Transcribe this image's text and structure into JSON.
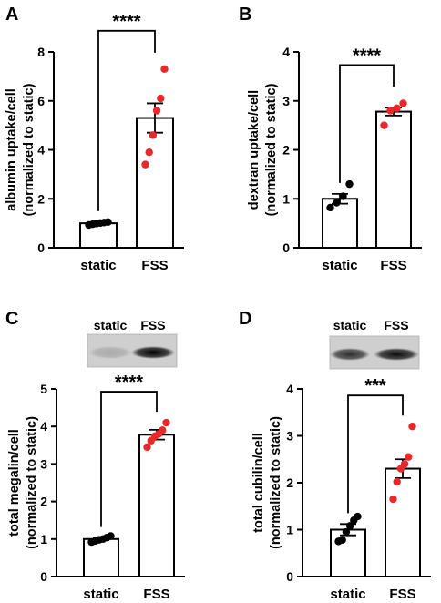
{
  "chart_data": [
    {
      "panel": "A",
      "type": "bar",
      "categories": [
        "static",
        "FSS"
      ],
      "ylabel_lines": [
        "albumin uptake/cell",
        "(normalized to static)"
      ],
      "ylim": [
        0,
        8
      ],
      "yticks": [
        0,
        2,
        4,
        6,
        8
      ],
      "means": [
        1.0,
        5.3
      ],
      "sem": [
        0.05,
        0.6
      ],
      "points": [
        [
          0.93,
          0.96,
          0.99,
          1.01,
          1.03,
          1.05
        ],
        [
          3.4,
          3.9,
          4.6,
          5.6,
          6.1,
          7.3
        ]
      ],
      "point_colors": [
        "#000000",
        "#e8282b"
      ],
      "significance": "****"
    },
    {
      "panel": "B",
      "type": "bar",
      "categories": [
        "static",
        "FSS"
      ],
      "ylabel_lines": [
        "dextran uptake/cell",
        "(normalized to static)"
      ],
      "ylim": [
        0,
        4
      ],
      "yticks": [
        0,
        1,
        2,
        3,
        4
      ],
      "means": [
        1.0,
        2.78
      ],
      "sem": [
        0.1,
        0.08
      ],
      "points": [
        [
          0.82,
          0.92,
          1.05,
          1.3
        ],
        [
          2.5,
          2.8,
          2.85,
          2.95
        ]
      ],
      "point_colors": [
        "#000000",
        "#e8282b"
      ],
      "significance": "****"
    },
    {
      "panel": "C",
      "type": "bar",
      "categories": [
        "static",
        "FSS"
      ],
      "ylabel_lines": [
        "total megalin/cell",
        "(normalized to static)"
      ],
      "ylim": [
        0,
        5
      ],
      "yticks": [
        0,
        1,
        2,
        3,
        4,
        5
      ],
      "means": [
        1.0,
        3.78
      ],
      "sem": [
        0.03,
        0.13
      ],
      "points": [
        [
          0.92,
          0.95,
          0.98,
          1.0,
          1.04,
          1.08
        ],
        [
          3.45,
          3.62,
          3.74,
          3.8,
          3.9,
          4.1
        ]
      ],
      "point_colors": [
        "#000000",
        "#e8282b"
      ],
      "significance": "****",
      "blot_labels": [
        "static",
        "FSS"
      ]
    },
    {
      "panel": "D",
      "type": "bar",
      "categories": [
        "static",
        "FSS"
      ],
      "ylabel_lines": [
        "total cubilin/cell",
        "(normalized to static)"
      ],
      "ylim": [
        0,
        4
      ],
      "yticks": [
        0,
        1,
        2,
        3,
        4
      ],
      "means": [
        1.0,
        2.3
      ],
      "sem": [
        0.12,
        0.2
      ],
      "points": [
        [
          0.75,
          0.78,
          0.95,
          1.08,
          1.2,
          1.28
        ],
        [
          1.65,
          2.02,
          2.3,
          2.4,
          2.55,
          3.2
        ]
      ],
      "point_colors": [
        "#000000",
        "#e8282b"
      ],
      "significance": "***",
      "blot_labels": [
        "static",
        "FSS"
      ]
    }
  ]
}
